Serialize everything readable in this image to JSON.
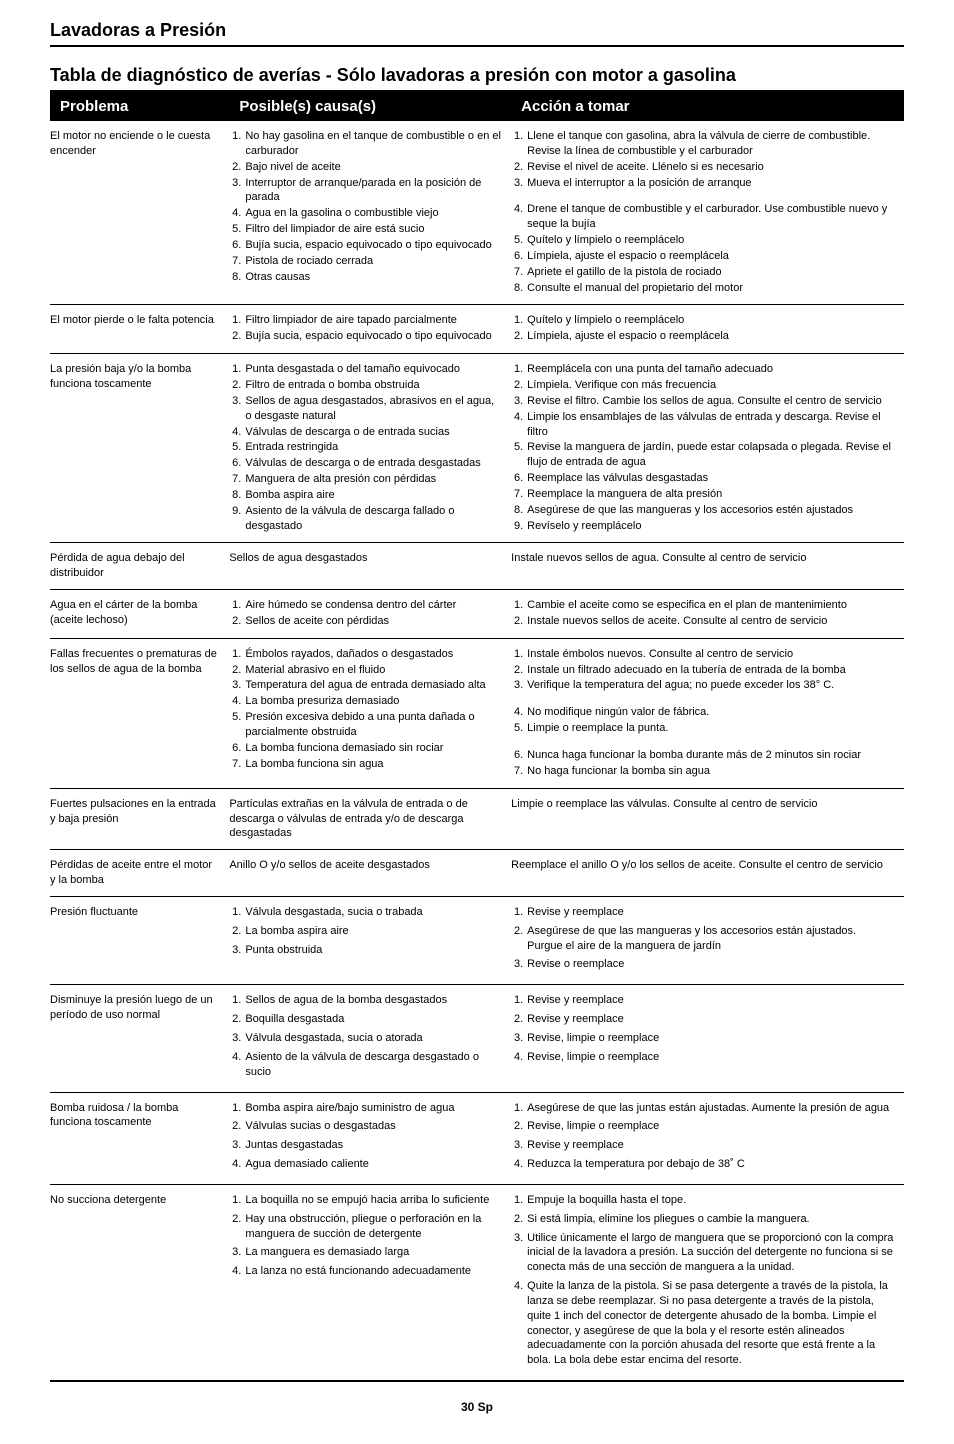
{
  "doc_title": "Lavadoras a Presión",
  "section_title": "Tabla de diagnóstico de averías - Sólo lavadoras a presión con motor a gasolina",
  "headers": {
    "problem": "Problema",
    "cause": "Posible(s) causa(s)",
    "action": "Acción a tomar"
  },
  "rows": [
    {
      "problem": "El motor no enciende o le cuesta encender",
      "causes": [
        "No hay gasolina en el tanque de combustible o en el carburador",
        "Bajo nivel de aceite",
        "Interruptor de arranque/parada en la posición de parada",
        "Agua en la gasolina o combustible viejo",
        "Filtro del limpiador de aire está sucio",
        "Bujía sucia, espacio equivocado o tipo equivocado",
        "Pistola de rociado cerrada",
        "Otras causas"
      ],
      "actions": [
        "Llene el tanque con gasolina, abra la válvula de cierre de combustible. Revise la línea de combustible y el carburador",
        "Revise el nivel de aceite. Llénelo si es necesario",
        "Mueva el interruptor a la posición de arranque\n",
        "Drene el tanque de combustible y el carburador. Use combustible nuevo y seque la bujía",
        "Quítelo y límpielo o reemplácelo",
        "Límpiela, ajuste el espacio o reemplácela",
        "Apriete el gatillo de la pistola de rociado",
        "Consulte el manual del propietario del motor"
      ]
    },
    {
      "problem": "El motor pierde o le falta potencia",
      "causes": [
        "Filtro limpiador de aire tapado parcialmente",
        "Bujía sucia, espacio equivocado o tipo equivocado"
      ],
      "actions": [
        "Quítelo y límpielo o reemplácelo",
        "Límpiela, ajuste el espacio o reemplácela"
      ]
    },
    {
      "problem": "La presión baja y/o la bomba funciona toscamente",
      "causes": [
        "Punta desgastada o del tamaño equivocado",
        "Filtro de entrada o bomba obstruida",
        "Sellos de agua desgastados, abrasivos en el agua, o desgaste natural",
        "Válvulas de descarga o de entrada sucias",
        "Entrada restringida",
        "Válvulas de descarga o de entrada desgastadas",
        "Manguera de alta presión con pérdidas",
        "Bomba aspira aire",
        "Asiento de la válvula de descarga fallado o desgastado"
      ],
      "actions": [
        "Reemplácela con una punta del tamaño adecuado",
        "Límpiela. Verifique con más frecuencia",
        "Revise el filtro. Cambie los sellos de agua. Consulte el centro de servicio",
        "Limpie los ensamblajes de las válvulas de entrada y descarga. Revise el filtro",
        "Revise la manguera de jardín, puede estar colapsada o plegada. Revise el flujo de entrada de agua",
        "Reemplace las válvulas desgastadas",
        "Reemplace la manguera de alta presión",
        "Asegúrese de que las mangueras y los accesorios estén ajustados",
        "Revíselo y reemplácelo"
      ]
    },
    {
      "problem": "Pérdida de agua debajo del distribuidor",
      "causes_plain": "Sellos de agua desgastados",
      "actions_plain": "Instale nuevos sellos de agua. Consulte al centro de servicio"
    },
    {
      "problem": "Agua en el cárter de la bomba (aceite lechoso)",
      "causes": [
        "Aire húmedo se condensa dentro del cárter",
        "Sellos de aceite con pérdidas"
      ],
      "actions": [
        "Cambie el aceite como se especifica en el plan de mantenimiento",
        "Instale nuevos sellos de aceite. Consulte al centro de servicio"
      ]
    },
    {
      "problem": "Fallas frecuentes o prematuras de los sellos de agua de la bomba",
      "causes": [
        "Émbolos rayados, dañados o desgastados",
        "Material abrasivo en el fluido",
        "Temperatura del agua de entrada demasiado alta",
        "La bomba presuriza demasiado",
        "Presión excesiva debido a una punta dañada o parcialmente obstruida",
        "La bomba funciona demasiado sin rociar",
        "La bomba funciona sin agua"
      ],
      "actions": [
        "Instale émbolos nuevos. Consulte al centro de servicio",
        "Instale un filtrado adecuado en la tubería de entrada de la bomba",
        "Verifique la temperatura del agua; no puede exceder los 38° C.\n",
        "No modifique ningún valor de fábrica.",
        "Limpie o reemplace la punta.\n",
        "Nunca haga funcionar la bomba durante más de 2 minutos sin rociar",
        "No haga funcionar la bomba sin agua"
      ]
    },
    {
      "problem": "Fuertes pulsaciones en la entrada y baja presión",
      "causes_plain": "Partículas extrañas en la válvula de entrada o de descarga o válvulas de entrada y/o de descarga desgastadas",
      "actions_plain": "Limpie o reemplace las válvulas. Consulte al centro de servicio"
    },
    {
      "problem": "Pérdidas de aceite entre el motor y la bomba",
      "causes_plain": "Anillo O y/o sellos de aceite desgastados",
      "actions_plain": "Reemplace el anillo O y/o los sellos de aceite. Consulte el centro de servicio"
    },
    {
      "problem": "Presión fluctuante",
      "causes": [
        "Válvula desgastada, sucia o trabada",
        "La bomba aspira aire",
        "Punta obstruida"
      ],
      "actions": [
        "Revise y reemplace",
        "Asegúrese de que las mangueras y los accesorios están ajustados. Purgue el aire de la manguera de jardín",
        "Revise o reemplace"
      ],
      "spaced": true
    },
    {
      "problem": "Disminuye la presión luego de un período de uso normal",
      "causes": [
        "Sellos de agua de la bomba desgastados",
        "Boquilla desgastada",
        "Válvula desgastada, sucia o atorada",
        "Asiento de la válvula de descarga desgastado o sucio"
      ],
      "actions": [
        "Revise y reemplace",
        "Revise y reemplace",
        "Revise, limpie o reemplace",
        "Revise, limpie o reemplace"
      ],
      "spaced": true
    },
    {
      "problem": "Bomba ruidosa / la bomba funciona toscamente",
      "causes": [
        "Bomba aspira aire/bajo suministro de agua",
        "Válvulas sucias o desgastadas",
        "Juntas desgastadas",
        "Agua demasiado caliente"
      ],
      "actions": [
        "Asegúrese de que las juntas están ajustadas. Aumente la presión de agua",
        "Revise, limpie o reemplace",
        "Revise y reemplace",
        "Reduzca la temperatura por debajo de 38˚ C"
      ],
      "spaced": true
    },
    {
      "problem": "No succiona detergente",
      "causes": [
        "La boquilla no se empujó hacia arriba lo suficiente",
        "Hay una obstrucción, pliegue o perforación en la manguera de succión de detergente",
        "La manguera es demasiado larga",
        "La lanza no está funcionando adecuadamente"
      ],
      "actions": [
        "Empuje la boquilla hasta el tope.",
        "Si está limpia, elimine los pliegues o cambie la manguera.",
        "Utilice únicamente el largo de manguera que se proporcionó con la compra inicial de la lavadora a presión. La succión del detergente no funciona si se conecta más de una sección de manguera a la unidad.",
        "Quite la lanza de la pistola. Si se pasa detergente a través de la pistola, la lanza se debe reemplazar. Si no pasa detergente a través de la pistola, quite 1 inch del conector de detergente ahusado de la bomba. Limpie el conector, y asegúrese de que la bola y el resorte estén alineados adecuadamente con la porción ahusada del resorte que está frente a la bola. La bola debe estar encima del resorte."
      ],
      "spaced": true
    }
  ],
  "page_footer": "30 Sp"
}
